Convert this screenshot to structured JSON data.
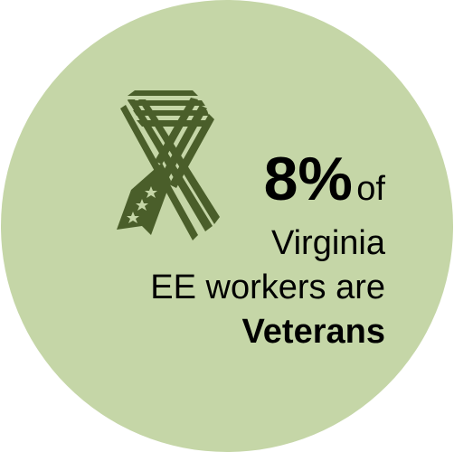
{
  "stat": {
    "value": "8%",
    "of": "of",
    "line2": "Virginia",
    "line3": "EE workers are",
    "line4": "Veterans"
  },
  "colors": {
    "circle": "#c5d6a7",
    "ribbon": "#4a5e2a"
  },
  "icon": "veterans-ribbon-icon"
}
